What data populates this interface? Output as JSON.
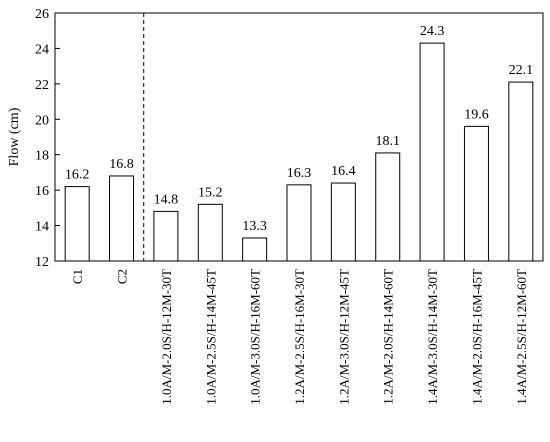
{
  "chart_data": {
    "type": "bar",
    "title": "",
    "xlabel": "",
    "ylabel": "Flow (cm)",
    "ylim": [
      12,
      26
    ],
    "yticks": [
      12,
      14,
      16,
      18,
      20,
      22,
      24,
      26
    ],
    "grid": false,
    "legend": "none",
    "categories": [
      "C1",
      "C2",
      "1.0A/M-2.0S/H-12M-30T",
      "1.0A/M-2.5S/H-14M-45T",
      "1.0A/M-3.0S/H-16M-60T",
      "1.2A/M-2.5S/H-16M-30T",
      "1.2A/M-3.0S/H-12M-45T",
      "1.2A/M-2.0S/H-14M-60T",
      "1.4A/M-3.0S/H-14M-30T",
      "1.4A/M-2.0S/H-16M-45T",
      "1.4A/M-2.5S/H-12M-60T"
    ],
    "values": [
      16.2,
      16.8,
      14.8,
      15.2,
      13.3,
      16.3,
      16.4,
      18.1,
      24.3,
      19.6,
      22.1
    ],
    "value_labels": [
      "16.2",
      "16.8",
      "14.8",
      "15.2",
      "13.3",
      "16.3",
      "16.4",
      "18.1",
      "24.3",
      "19.6",
      "22.1"
    ],
    "separator_after_index": 1,
    "bar_fill": "#ffffff",
    "bar_stroke": "#000000"
  }
}
